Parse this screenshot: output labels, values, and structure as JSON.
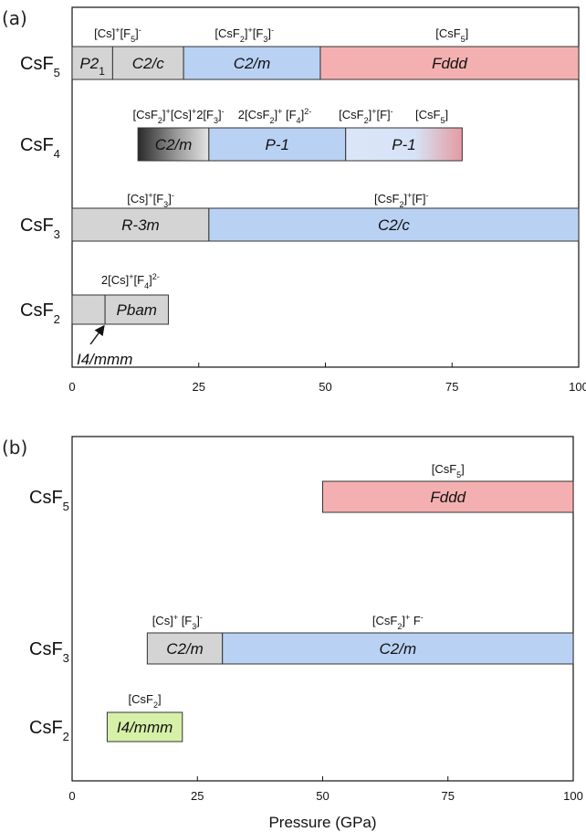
{
  "chart_data": [
    {
      "type": "bar",
      "panel_label": "(a)",
      "xlim": [
        0,
        100
      ],
      "xticks": [
        "0",
        "25",
        "50",
        "75",
        "100"
      ],
      "xlabel": "",
      "rows": [
        {
          "compound": {
            "base": "CsF",
            "sub": "5"
          },
          "phases": [
            {
              "name": "P2",
              "sub": "1",
              "start": 0,
              "end": 8,
              "color": "#d4d4d4"
            },
            {
              "name": "C2/c",
              "start": 8,
              "end": 22,
              "color": "#d4d4d4"
            },
            {
              "name": "C2/m",
              "start": 22,
              "end": 49,
              "color": "#b9d1f3"
            },
            {
              "name": "Fddd",
              "start": 49,
              "end": 100,
              "color": "#f4b0b0"
            }
          ],
          "annotations": [
            {
              "x": 9,
              "parts": [
                [
                  "[Cs]"
                ],
                [
                  "+",
                  "sup"
                ],
                [
                  "[F"
                ],
                [
                  "5",
                  "sub"
                ],
                [
                  "]"
                ],
                [
                  "-",
                  "sup"
                ]
              ]
            },
            {
              "x": 34,
              "parts": [
                [
                  "[CsF"
                ],
                [
                  "2",
                  "sub"
                ],
                [
                  "]"
                ],
                [
                  "+",
                  "sup"
                ],
                [
                  "[F"
                ],
                [
                  "3",
                  "sub"
                ],
                [
                  "]"
                ],
                [
                  "-",
                  "sup"
                ]
              ]
            },
            {
              "x": 75,
              "parts": [
                [
                  "[CsF"
                ],
                [
                  "5",
                  "sub"
                ],
                [
                  "]"
                ]
              ]
            }
          ]
        },
        {
          "compound": {
            "base": "CsF",
            "sub": "4"
          },
          "phases": [
            {
              "name": "C2/m",
              "start": 13,
              "end": 27,
              "color": "#d4d4d4",
              "gradient": "dark-left"
            },
            {
              "name": "P-1",
              "start": 27,
              "end": 54,
              "color": "#b9d1f3"
            },
            {
              "name": "P-1",
              "start": 54,
              "end": 77,
              "color": "#cfe0f7",
              "gradient": "pink-right"
            }
          ],
          "annotations": [
            {
              "x": 21,
              "parts": [
                [
                  "[CsF"
                ],
                [
                  "2",
                  "sub"
                ],
                [
                  "]"
                ],
                [
                  "+",
                  "sup"
                ],
                [
                  "[Cs]"
                ],
                [
                  "+",
                  "sup"
                ],
                [
                  "2[F"
                ],
                [
                  "3",
                  "sub"
                ],
                [
                  "]"
                ],
                [
                  "-",
                  "sup"
                ]
              ]
            },
            {
              "x": 40,
              "parts": [
                [
                  "2[CsF"
                ],
                [
                  "2",
                  "sub"
                ],
                [
                  "]"
                ],
                [
                  "+",
                  "sup"
                ],
                [
                  " [F"
                ],
                [
                  "4",
                  "sub"
                ],
                [
                  "]"
                ],
                [
                  "2-",
                  "sup"
                ]
              ]
            },
            {
              "x": 58,
              "parts": [
                [
                  "[CsF"
                ],
                [
                  "2",
                  "sub"
                ],
                [
                  "]"
                ],
                [
                  "+",
                  "sup"
                ],
                [
                  "[F]"
                ],
                [
                  "-",
                  "sup"
                ]
              ]
            },
            {
              "x": 71,
              "parts": [
                [
                  "[CsF"
                ],
                [
                  "5",
                  "sub"
                ],
                [
                  "]"
                ]
              ]
            }
          ]
        },
        {
          "compound": {
            "base": "CsF",
            "sub": "3"
          },
          "phases": [
            {
              "name": "R-3m",
              "start": 0,
              "end": 27,
              "color": "#d4d4d4"
            },
            {
              "name": "C2/c",
              "start": 27,
              "end": 100,
              "color": "#b9d1f3"
            }
          ],
          "annotations": [
            {
              "x": 15.5,
              "parts": [
                [
                  "[Cs]"
                ],
                [
                  "+",
                  "sup"
                ],
                [
                  "[F"
                ],
                [
                  "3",
                  "sub"
                ],
                [
                  "]"
                ],
                [
                  "-",
                  "sup"
                ]
              ]
            },
            {
              "x": 65,
              "parts": [
                [
                  "[CsF"
                ],
                [
                  "2",
                  "sub"
                ],
                [
                  "]"
                ],
                [
                  "+",
                  "sup"
                ],
                [
                  "[F]"
                ],
                [
                  "-",
                  "sup"
                ]
              ]
            }
          ]
        },
        {
          "compound": {
            "base": "CsF",
            "sub": "2"
          },
          "phases": [
            {
              "name": "",
              "start": 0,
              "end": 6.5,
              "color": "#d4d4d4"
            },
            {
              "name": "Pbam",
              "start": 6.5,
              "end": 19,
              "color": "#d4d4d4"
            }
          ],
          "annotations": [
            {
              "x": 11.5,
              "parts": [
                [
                  "2[Cs]"
                ],
                [
                  "+",
                  "sup"
                ],
                [
                  "[F"
                ],
                [
                  "4",
                  "sub"
                ],
                [
                  "]"
                ],
                [
                  "2-",
                  "sup"
                ]
              ]
            }
          ],
          "arrow_label": "I4/mmm"
        }
      ]
    },
    {
      "type": "bar",
      "panel_label": "(b)",
      "xlim": [
        0,
        100
      ],
      "xticks": [
        "0",
        "25",
        "50",
        "75",
        "100"
      ],
      "xlabel": "Pressure (GPa)",
      "rows": [
        {
          "compound": {
            "base": "CsF",
            "sub": "5"
          },
          "phases": [
            {
              "name": "Fddd",
              "start": 50,
              "end": 100,
              "color": "#f4b0b0"
            }
          ],
          "annotations": [
            {
              "x": 75,
              "parts": [
                [
                  "[CsF"
                ],
                [
                  "5",
                  "sub"
                ],
                [
                  "]"
                ]
              ]
            }
          ]
        },
        {
          "compound": {
            "base": "CsF",
            "sub": "3"
          },
          "phases": [
            {
              "name": "C2/m",
              "start": 15,
              "end": 30,
              "color": "#d4d4d4"
            },
            {
              "name": "C2/m",
              "start": 30,
              "end": 100,
              "color": "#b9d1f3"
            }
          ],
          "annotations": [
            {
              "x": 21,
              "parts": [
                [
                  "[Cs]"
                ],
                [
                  "+",
                  "sup"
                ],
                [
                  " [F"
                ],
                [
                  "3",
                  "sub"
                ],
                [
                  "]"
                ],
                [
                  "-",
                  "sup"
                ]
              ]
            },
            {
              "x": 65,
              "parts": [
                [
                  "[CsF"
                ],
                [
                  "2",
                  "sub"
                ],
                [
                  "]"
                ],
                [
                  "+",
                  "sup"
                ],
                [
                  " F"
                ],
                [
                  "-",
                  "sup"
                ]
              ]
            }
          ]
        },
        {
          "compound": {
            "base": "CsF",
            "sub": "2"
          },
          "phases": [
            {
              "name": "I4/mmm",
              "start": 7,
              "end": 22,
              "color": "#d6f0a8"
            }
          ],
          "annotations": [
            {
              "x": 14.5,
              "parts": [
                [
                  "[CsF"
                ],
                [
                  "2",
                  "sub"
                ],
                [
                  "]"
                ]
              ]
            }
          ]
        }
      ]
    }
  ]
}
